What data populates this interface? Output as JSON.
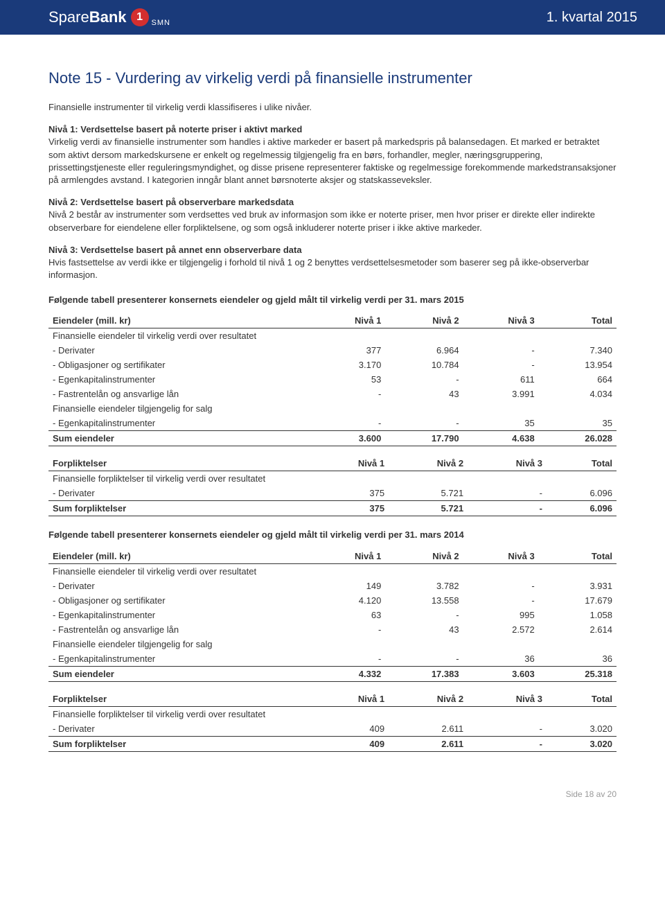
{
  "header": {
    "logo_prefix": "Spare",
    "logo_suffix": "Bank",
    "logo_badge": "1",
    "logo_sub": "SMN",
    "right": "1. kvartal 2015"
  },
  "title": "Note 15 - Vurdering av virkelig verdi på finansielle instrumenter",
  "intro": "Finansielle instrumenter til virkelig verdi klassifiseres i ulike nivåer.",
  "niv1_head": "Nivå 1: Verdsettelse basert på noterte priser i aktivt marked",
  "niv1_body": "Virkelig verdi av finansielle instrumenter som handles i aktive markeder er basert på markedspris på balansedagen. Et marked er betraktet som aktivt dersom markedskursene er enkelt og regelmessig tilgjengelig fra en børs, forhandler, megler, næringsgruppering, prissettingstjeneste eller reguleringsmyndighet, og disse prisene representerer faktiske og regelmessige forekommende markedstransaksjoner på armlengdes avstand. I kategorien inngår blant annet børsnoterte aksjer og statskasseveksler.",
  "niv2_head": "Nivå 2: Verdsettelse basert på observerbare markedsdata",
  "niv2_body": "Nivå 2 består av instrumenter som verdsettes ved bruk av informasjon som ikke er noterte priser, men hvor priser er direkte eller indirekte observerbare for eiendelene eller forpliktelsene, og som også inkluderer noterte priser i ikke aktive markeder.",
  "niv3_head": "Nivå 3: Verdsettelse basert på annet enn observerbare data",
  "niv3_body": "Hvis fastsettelse av verdi ikke er tilgjengelig i forhold til nivå 1 og 2 benyttes verdsettelsesmetoder som baserer seg på ikke-observerbar informasjon.",
  "caption_2015": "Følgende tabell presenterer konsernets eiendeler og gjeld målt til virkelig verdi per 31. mars 2015",
  "caption_2014": "Følgende tabell presenterer konsernets eiendeler og gjeld målt til virkelig verdi per 31. mars 2014",
  "cols": {
    "assets_label": "Eiendeler (mill. kr)",
    "liab_label": "Forpliktelser",
    "n1": "Nivå 1",
    "n2": "Nivå 2",
    "n3": "Nivå 3",
    "tot": "Total"
  },
  "labels": {
    "sec_fv_result": "Finansielle eiendeler til virkelig verdi over resultatet",
    "derivater": "- Derivater",
    "oblig": "- Obligasjoner og sertifikater",
    "ek": "- Egenkapitalinstrumenter",
    "fastrente": "- Fastrentelån og ansvarlige lån",
    "sec_afs": "Finansielle eiendeler tilgjengelig for salg",
    "sum_assets": "Sum eiendeler",
    "sec_liab_fv": "Finansielle forpliktelser til virkelig verdi over resultatet",
    "sum_liab": "Sum forpliktelser"
  },
  "t2015_assets": {
    "derivater": {
      "n1": "377",
      "n2": "6.964",
      "n3": "-",
      "tot": "7.340"
    },
    "oblig": {
      "n1": "3.170",
      "n2": "10.784",
      "n3": "-",
      "tot": "13.954"
    },
    "ek": {
      "n1": "53",
      "n2": "-",
      "n3": "611",
      "tot": "664"
    },
    "fastrente": {
      "n1": "-",
      "n2": "43",
      "n3": "3.991",
      "tot": "4.034"
    },
    "ek_afs": {
      "n1": "-",
      "n2": "-",
      "n3": "35",
      "tot": "35"
    },
    "sum": {
      "n1": "3.600",
      "n2": "17.790",
      "n3": "4.638",
      "tot": "26.028"
    }
  },
  "t2015_liab": {
    "derivater": {
      "n1": "375",
      "n2": "5.721",
      "n3": "-",
      "tot": "6.096"
    },
    "sum": {
      "n1": "375",
      "n2": "5.721",
      "n3": "-",
      "tot": "6.096"
    }
  },
  "t2014_assets": {
    "derivater": {
      "n1": "149",
      "n2": "3.782",
      "n3": "-",
      "tot": "3.931"
    },
    "oblig": {
      "n1": "4.120",
      "n2": "13.558",
      "n3": "-",
      "tot": "17.679"
    },
    "ek": {
      "n1": "63",
      "n2": "-",
      "n3": "995",
      "tot": "1.058"
    },
    "fastrente": {
      "n1": "-",
      "n2": "43",
      "n3": "2.572",
      "tot": "2.614"
    },
    "ek_afs": {
      "n1": "-",
      "n2": "-",
      "n3": "36",
      "tot": "36"
    },
    "sum": {
      "n1": "4.332",
      "n2": "17.383",
      "n3": "3.603",
      "tot": "25.318"
    }
  },
  "t2014_liab": {
    "derivater": {
      "n1": "409",
      "n2": "2.611",
      "n3": "-",
      "tot": "3.020"
    },
    "sum": {
      "n1": "409",
      "n2": "2.611",
      "n3": "-",
      "tot": "3.020"
    }
  },
  "footer": "Side 18 av 20"
}
